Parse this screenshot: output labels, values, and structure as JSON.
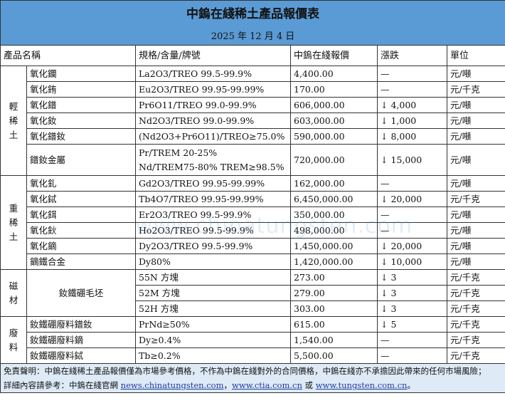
{
  "title": "中鎢在綫稀土產品報價表",
  "date": "2025 年 12 月 4 日",
  "headers": [
    "產品名稱",
    "規格/含量/牌號",
    "中鎢在綫報價",
    "漲跌",
    "單位"
  ],
  "groups": [
    {
      "category": "輕稀土",
      "rows": [
        {
          "name": "氧化鑭",
          "spec": "La2O3/TREO 99.5-99.9%",
          "price": "4,400.00",
          "change": "—",
          "unit": "元/噸"
        },
        {
          "name": "氧化銪",
          "spec": "Eu2O3/TREO 99.95-99.99%",
          "price": "170.00",
          "change": "—",
          "unit": "元/千克"
        },
        {
          "name": "氧化鐠",
          "spec": "Pr6O11/TREO 99.0-99.9%",
          "price": "606,000.00",
          "change": "↓ 4,000",
          "unit": "元/噸"
        },
        {
          "name": "氧化釹",
          "spec": "Nd2O3/TREO 99.0-99.9%",
          "price": "603,000.00",
          "change": "↓ 1,000",
          "unit": "元/噸"
        },
        {
          "name": "氧化鐠釹",
          "spec": "(Nd2O3+Pr6O11)/TREO≥75.0%",
          "price": "590,000.00",
          "change": "↓ 8,000",
          "unit": "元/噸"
        },
        {
          "name": "鐠釹金屬",
          "spec": "Pr/TREM 20-25%",
          "spec2": "Nd/TREM75-80% TREM≥98.5%",
          "price": "720,000.00",
          "change": "↓ 15,000",
          "unit": "元/噸"
        }
      ]
    },
    {
      "category": "重稀土",
      "rows": [
        {
          "name": "氧化釓",
          "spec": "Gd2O3/TREO 99.95-99.99%",
          "price": "162,000.00",
          "change": "—",
          "unit": "元/噸"
        },
        {
          "name": "氧化鋱",
          "spec": "Tb4O7/TREO 99.95-99.99%",
          "price": "6,450,000.00",
          "change": "↓ 20,000",
          "unit": "元/千克"
        },
        {
          "name": "氧化鉺",
          "spec": "Er2O3/TREO 99.5-99.9%",
          "price": "350,000.00",
          "change": "—",
          "unit": "元/噸"
        },
        {
          "name": "氧化鈥",
          "spec": "Ho2O3/TREO 99.5-99.9%",
          "price": "498,000.00",
          "change": "—",
          "unit": "元/噸"
        },
        {
          "name": "氧化鏑",
          "spec": "Dy2O3/TREO 99.5-99.9%",
          "price": "1,450,000.00",
          "change": "↓ 20,000",
          "unit": "元/噸"
        },
        {
          "name": "鏑鐵合金",
          "spec": "Dy80%",
          "price": "1,420,000.00",
          "change": "↓ 10,000",
          "unit": "元/噸"
        }
      ]
    },
    {
      "category": "磁材",
      "name": "釹鐵硼毛坯",
      "rows": [
        {
          "spec": "55N 方塊",
          "price": "273.00",
          "change": "↓ 3",
          "unit": "元/千克"
        },
        {
          "spec": "52M 方塊",
          "price": "279.00",
          "change": "↓ 3",
          "unit": "元/千克"
        },
        {
          "spec": "52H 方塊",
          "price": "303.00",
          "change": "↓ 3",
          "unit": "元/千克"
        }
      ]
    },
    {
      "category": "廢料",
      "rows": [
        {
          "name": "釹鐵硼廢料鐠釹",
          "spec": "PrNd≥50%",
          "price": "615.00",
          "change": "↓ 5",
          "unit": "元/千克"
        },
        {
          "name": "釹鐵硼廢料鏑",
          "spec": "Dy≥0.4%",
          "price": "1,540.00",
          "change": "—",
          "unit": "元/千克"
        },
        {
          "name": "釹鐵硼廢料鋱",
          "spec": "Tb≥0.2%",
          "price": "5,500.00",
          "change": "—",
          "unit": "元/千克"
        }
      ]
    }
  ],
  "footer": {
    "disclaimer": "免責聲明：中鎢在綫稀土產品報價僅為市場參考價格，不作為中鎢在綫對外的合同價格，中鎢在綫亦不承擔因此帶來的任何市場風險；",
    "ref_prefix": "詳細內容請參考：中鎢在綫官網 ",
    "link1": "news.chinatungsten.com",
    "sep1": "，",
    "link2": "www.ctia.com.cn",
    "sep2": " 或 ",
    "link3": "www.tungsten.com.cn",
    "end": "。"
  },
  "watermark": "www.chinatungsten.com",
  "colors": {
    "header_bg": "#5b9bd5",
    "footer_bg": "#deebf7"
  }
}
